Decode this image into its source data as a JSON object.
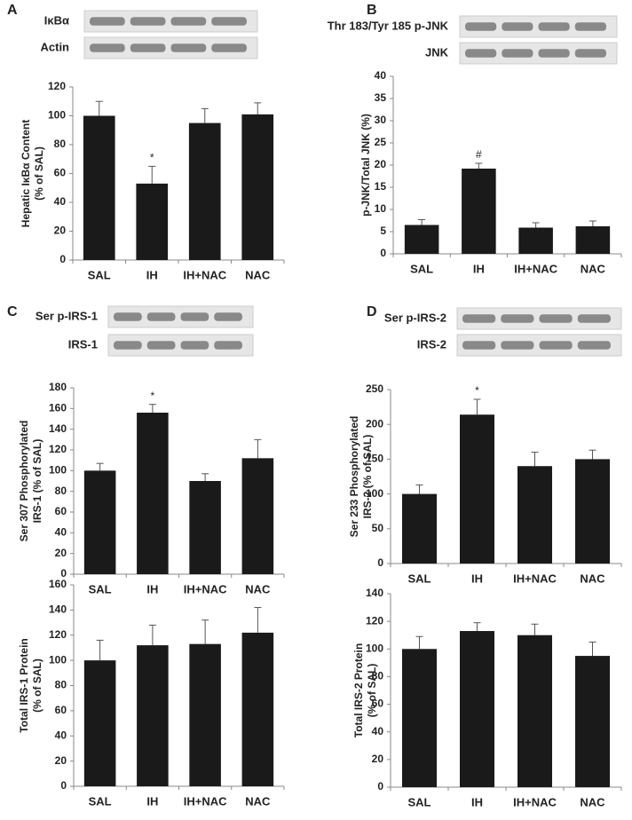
{
  "chart_data": [
    {
      "type": "bar",
      "panel": "A",
      "blots": [
        "IκBα",
        "Actin"
      ],
      "y_label": [
        "Hepatic IκBα Content",
        "(% of SAL)"
      ],
      "categories": [
        "SAL",
        "IH",
        "IH+NAC",
        "NAC"
      ],
      "values": [
        100,
        53,
        95,
        101
      ],
      "errors": [
        10,
        12,
        10,
        8
      ],
      "annotations": [
        null,
        "*",
        null,
        null
      ],
      "color": "#1a1a1a",
      "ylim": [
        0,
        120
      ],
      "yticks": [
        0,
        20,
        40,
        60,
        80,
        100,
        120
      ]
    },
    {
      "type": "bar",
      "panel": "B",
      "blots": [
        "Thr 183/Tyr 185 p-JNK",
        "JNK"
      ],
      "y_label": [
        "p-JNK/Total JNK (%)"
      ],
      "categories": [
        "SAL",
        "IH",
        "IH+NAC",
        "NAC"
      ],
      "values": [
        6.5,
        19.2,
        5.9,
        6.2
      ],
      "errors": [
        1.2,
        1.2,
        1.1,
        1.2
      ],
      "annotations": [
        null,
        "#",
        null,
        null
      ],
      "color": "#1a1a1a",
      "ylim": [
        0,
        40
      ],
      "yticks": [
        0,
        5,
        10,
        15,
        20,
        25,
        30,
        35,
        40
      ]
    },
    {
      "type": "bar",
      "panel": "C",
      "blots": [
        "Ser p-IRS-1",
        "IRS-1"
      ],
      "y_label": [
        "Ser 307 Phosphorylated",
        "IRS-1 (% of SAL)"
      ],
      "categories": [
        "SAL",
        "IH",
        "IH+NAC",
        "NAC"
      ],
      "values": [
        100,
        156,
        90,
        112
      ],
      "errors": [
        7,
        8,
        7,
        18
      ],
      "annotations": [
        null,
        "*",
        null,
        null
      ],
      "color": "#1a1a1a",
      "ylim": [
        0,
        180
      ],
      "yticks": [
        0,
        20,
        40,
        60,
        80,
        100,
        120,
        140,
        160,
        180
      ]
    },
    {
      "type": "bar",
      "panel": "D",
      "blots": [
        "Ser  p-IRS-2",
        "IRS-2"
      ],
      "y_label": [
        "Ser 233 Phosphorylated",
        "IRS-2 (% of SAL)"
      ],
      "categories": [
        "SAL",
        "IH",
        "IH+NAC",
        "NAC"
      ],
      "values": [
        100,
        214,
        140,
        150
      ],
      "errors": [
        13,
        22,
        20,
        13
      ],
      "annotations": [
        null,
        "*",
        null,
        null
      ],
      "color": "#1a1a1a",
      "ylim": [
        0,
        250
      ],
      "yticks": [
        0,
        50,
        100,
        150,
        200,
        250
      ]
    },
    {
      "type": "bar",
      "y_label": [
        "Total IRS-1 Protein",
        "(% of SAL)"
      ],
      "categories": [
        "SAL",
        "IH",
        "IH+NAC",
        "NAC"
      ],
      "values": [
        100,
        112,
        113,
        122
      ],
      "errors": [
        16,
        16,
        19,
        20
      ],
      "color": "#1a1a1a",
      "ylim": [
        0,
        160
      ],
      "yticks": [
        0,
        20,
        40,
        60,
        80,
        100,
        120,
        140,
        160
      ]
    },
    {
      "type": "bar",
      "y_label": [
        "Total IRS-2 Protein",
        "(% of SAL)"
      ],
      "categories": [
        "SAL",
        "IH",
        "IH+NAC",
        "NAC"
      ],
      "values": [
        100,
        113,
        110,
        95
      ],
      "errors": [
        9,
        6,
        8,
        10
      ],
      "color": "#1a1a1a",
      "ylim": [
        0,
        140
      ],
      "yticks": [
        0,
        20,
        40,
        60,
        80,
        100,
        120,
        140
      ]
    }
  ]
}
